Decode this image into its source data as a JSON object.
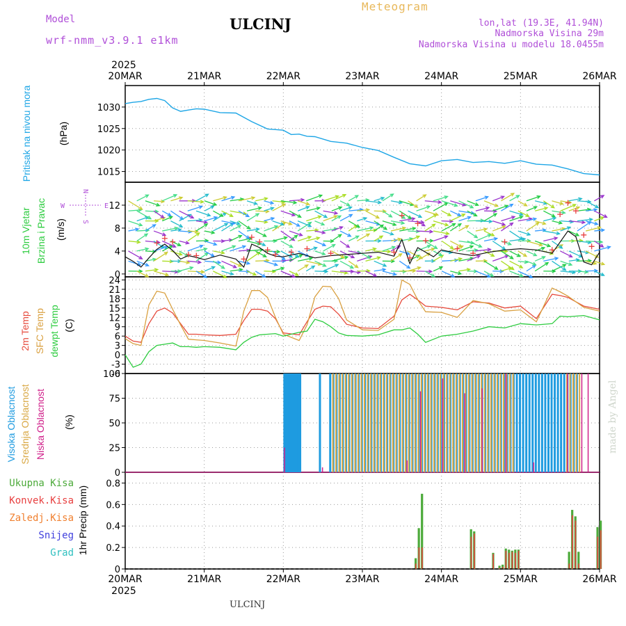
{
  "header": {
    "model_label": "Model",
    "model_name": "wrf-nmm_v3.9.1 e1km",
    "station": "ULCINJ",
    "product": "Meteogram",
    "lonlat": "lon,lat (19.3E, 41.94N)",
    "elevation": "Nadmorska Visina 29m",
    "model_elevation": "Nadmorska Visina u modelu 18.0455m"
  },
  "footer_station": "ULCINJ",
  "credit": "made by Angel",
  "time_axis": {
    "year": "2025",
    "ticks": [
      "20MAR",
      "21MAR",
      "22MAR",
      "23MAR",
      "24MAR",
      "25MAR",
      "26MAR"
    ]
  },
  "compass": {
    "n": "N",
    "e": "E",
    "w": "W",
    "s": "S"
  },
  "colors": {
    "pressure": "#1ea6e6",
    "temp2m": "#e64a3c",
    "tempsfc": "#d9a040",
    "dewpt": "#2ecc40",
    "high": "#1e9be0",
    "mid": "#d9a845",
    "low": "#d0208a",
    "total": "#4caa3a",
    "conv": "#e84040",
    "frozen": "#f08030",
    "snow": "#4040dd",
    "graupel": "#30c0c0"
  },
  "chart_data": [
    {
      "type": "line",
      "name": "pressure",
      "ylabel_left": "Pritisak na nivou mora",
      "unit": "(hPa)",
      "ylim": [
        1012.5,
        1035
      ],
      "yticks": [
        1015,
        1020,
        1025,
        1030
      ],
      "x": [
        0,
        0.1,
        0.2,
        0.3,
        0.4,
        0.5,
        0.6,
        0.7,
        0.8,
        0.9,
        1,
        1.2,
        1.4,
        1.6,
        1.8,
        2,
        2.1,
        2.2,
        2.3,
        2.4,
        2.6,
        2.8,
        3,
        3.2,
        3.4,
        3.6,
        3.8,
        4,
        4.2,
        4.4,
        4.6,
        4.8,
        5,
        5.2,
        5.4,
        5.6,
        5.8,
        6
      ],
      "values": [
        1030.8,
        1031.1,
        1031.3,
        1031.8,
        1032,
        1031.5,
        1029.8,
        1029,
        1029.3,
        1029.6,
        1029.5,
        1028.7,
        1028.6,
        1026.6,
        1024.9,
        1024.6,
        1023.6,
        1023.7,
        1023.2,
        1023.1,
        1022,
        1021.6,
        1020.6,
        1019.9,
        1018.3,
        1016.8,
        1016.3,
        1017.5,
        1017.8,
        1017.1,
        1017.3,
        1016.9,
        1017.5,
        1016.7,
        1016.5,
        1015.6,
        1014.5,
        1014.2
      ]
    },
    {
      "type": "line",
      "name": "wind",
      "ylabel_left": [
        "10m Vjetar",
        "Brzina i Pravac"
      ],
      "unit": "(m/s)",
      "ylim": [
        -0.5,
        16
      ],
      "yticks": [
        0,
        4,
        8,
        12
      ],
      "x": [
        0,
        0.1,
        0.2,
        0.3,
        0.4,
        0.5,
        0.6,
        0.7,
        0.8,
        0.9,
        1,
        1.2,
        1.4,
        1.5,
        1.6,
        1.7,
        1.8,
        1.9,
        2,
        2.2,
        2.4,
        2.6,
        2.8,
        3,
        3.2,
        3.4,
        3.5,
        3.6,
        3.7,
        3.8,
        3.9,
        4,
        4.2,
        4.4,
        4.6,
        4.8,
        5,
        5.2,
        5.4,
        5.6,
        5.7,
        5.8,
        5.9,
        6
      ],
      "values": [
        3,
        2.2,
        1.2,
        2.8,
        4.3,
        5.2,
        4.1,
        2.6,
        3.2,
        2.9,
        2.5,
        3.3,
        2.6,
        1.2,
        5.2,
        4.6,
        3.6,
        3.1,
        3,
        3.6,
        2.8,
        3.2,
        3.4,
        3.6,
        3.8,
        3.1,
        6,
        1.8,
        4.6,
        3.8,
        3,
        4.2,
        3.6,
        3.2,
        3.8,
        4.2,
        4.4,
        4.2,
        3.6,
        7.5,
        6.5,
        2.1,
        1.6,
        3.8
      ],
      "gust_x": [
        0.4,
        0.5,
        0.6,
        0.8,
        0.9,
        1.5,
        1.6,
        1.7,
        1.8,
        1.9,
        2.1,
        2.3,
        2.6,
        3.4,
        3.5,
        3.6,
        3.7,
        3.8,
        4.2,
        4.4,
        4.8,
        5.4,
        5.5,
        5.6,
        5.7,
        5.8,
        5.9
      ],
      "gust_values": [
        5.4,
        6.2,
        5.6,
        3.4,
        3.2,
        2.6,
        6.4,
        5.6,
        4.2,
        3.4,
        3.8,
        4.4,
        3.6,
        3.8,
        10.2,
        2.8,
        8.8,
        5.8,
        4.4,
        3.6,
        5.6,
        4.2,
        10.4,
        12.4,
        11,
        6.8,
        4.8
      ]
    },
    {
      "type": "line",
      "name": "temperature",
      "ylabel_left": [
        "2m Temp",
        "SFC Temp",
        "dewpt Temp"
      ],
      "unit": "(C)",
      "ylim": [
        -6,
        25
      ],
      "yticks": [
        -6,
        -3,
        0,
        3,
        6,
        9,
        12,
        15,
        18,
        21,
        24
      ],
      "x": [
        0,
        0.1,
        0.2,
        0.3,
        0.4,
        0.5,
        0.6,
        0.7,
        0.8,
        0.9,
        1,
        1.2,
        1.4,
        1.5,
        1.6,
        1.7,
        1.8,
        1.9,
        2,
        2.2,
        2.3,
        2.4,
        2.5,
        2.6,
        2.7,
        2.8,
        3,
        3.2,
        3.4,
        3.5,
        3.6,
        3.7,
        3.8,
        4,
        4.2,
        4.4,
        4.6,
        4.8,
        5,
        5.2,
        5.4,
        5.5,
        5.6,
        5.8,
        6
      ],
      "series": [
        {
          "name": "2m Temp",
          "values": [
            6,
            4.4,
            4,
            10,
            14,
            15,
            13.4,
            10,
            6.6,
            6.6,
            6.4,
            6.2,
            6.6,
            11,
            14.6,
            14.6,
            14,
            11.6,
            7,
            6.4,
            10.6,
            14.6,
            15.6,
            15.4,
            13,
            9.8,
            8.6,
            8.4,
            12.4,
            17.6,
            19.4,
            17.6,
            15.6,
            15.2,
            14.4,
            17,
            16.6,
            15,
            15.6,
            11.6,
            19.4,
            19,
            18.4,
            15.6,
            14.6
          ]
        },
        {
          "name": "SFC Temp",
          "values": [
            5.2,
            3.6,
            3,
            16,
            20.4,
            19.8,
            14.6,
            9.6,
            5,
            4.8,
            4.6,
            3.8,
            2.8,
            14,
            20.6,
            20.6,
            18.4,
            12,
            6.6,
            4.6,
            9.6,
            18.6,
            22,
            21.8,
            18,
            11.2,
            8,
            7.8,
            11.4,
            24,
            22.6,
            17.6,
            13.8,
            13.6,
            12,
            17.4,
            16.4,
            14,
            14.4,
            10.6,
            21.4,
            20.2,
            18.8,
            15.2,
            14
          ]
        },
        {
          "name": "dewpt Temp",
          "values": [
            0,
            -4,
            -3,
            1,
            3,
            3.4,
            3.8,
            2.6,
            2.6,
            2.4,
            2.6,
            2.4,
            1.6,
            4,
            5.6,
            6.4,
            6.6,
            6.8,
            6,
            7.2,
            7.6,
            11.4,
            10.6,
            9,
            7,
            6.2,
            6,
            6.4,
            8,
            8,
            8.6,
            6.6,
            4,
            6,
            6.6,
            7.6,
            9,
            8.6,
            10,
            9.6,
            10,
            12.4,
            12.2,
            12.6,
            11.2
          ]
        }
      ]
    },
    {
      "type": "bar",
      "name": "cloud_cover",
      "ylabel_left": [
        "Visoka Oblacnost",
        "Srednja Oblacnost",
        "Niska Oblacnost"
      ],
      "unit": "(%)",
      "ylim": [
        0,
        100
      ],
      "yticks": [
        0,
        25,
        50,
        75,
        100
      ],
      "high_x": [
        2,
        2.02,
        2.04,
        2.06,
        2.08,
        2.1,
        2.12,
        2.14,
        2.16,
        2.18,
        2.2,
        2.45,
        2.58,
        2.62,
        2.66,
        2.7,
        2.74,
        2.78,
        2.82,
        2.86,
        2.9,
        2.94,
        2.98,
        3.02,
        3.06,
        3.1,
        3.14,
        3.18,
        3.22,
        3.26,
        3.3,
        3.34,
        3.38,
        3.42,
        3.46,
        3.5,
        3.54,
        3.58,
        3.62,
        3.66,
        3.7,
        3.74,
        3.78,
        3.82,
        3.86,
        3.9,
        3.94,
        3.98,
        4.02,
        4.06,
        4.1,
        4.14,
        4.18,
        4.22,
        4.26,
        4.3,
        4.34,
        4.38,
        4.42,
        4.46,
        4.5,
        4.54,
        4.58,
        4.62,
        4.66,
        4.7,
        4.74,
        4.78,
        4.82,
        4.86,
        4.9,
        4.94,
        4.98,
        5.02,
        5.06,
        5.1,
        5.14,
        5.18,
        5.22,
        5.26,
        5.3,
        5.34,
        5.38,
        5.42,
        5.46,
        5.5,
        5.54,
        5.58,
        5.62,
        5.66,
        5.7
      ],
      "high_values": [
        100,
        100,
        100,
        100,
        100,
        100,
        100,
        100,
        100,
        100,
        100,
        100,
        100,
        100,
        100,
        100,
        100,
        100,
        100,
        100,
        100,
        100,
        100,
        100,
        100,
        100,
        100,
        100,
        100,
        100,
        100,
        100,
        100,
        100,
        100,
        100,
        100,
        100,
        100,
        100,
        100,
        100,
        100,
        100,
        100,
        100,
        100,
        100,
        100,
        100,
        100,
        100,
        100,
        100,
        100,
        100,
        100,
        100,
        100,
        100,
        100,
        100,
        100,
        100,
        100,
        100,
        100,
        100,
        100,
        100,
        100,
        100,
        100,
        100,
        100,
        100,
        100,
        100,
        100,
        100,
        100,
        100,
        100,
        100,
        100,
        100,
        100,
        100,
        100,
        100,
        100
      ],
      "mid_x": [
        2.6,
        2.64,
        2.68,
        2.72,
        2.76,
        2.8,
        2.84,
        2.88,
        2.92,
        2.96,
        3,
        3.04,
        3.08,
        3.12,
        3.16,
        3.2,
        3.24,
        3.28,
        3.32,
        3.36,
        3.4,
        3.44,
        3.48,
        3.52,
        3.56,
        3.6,
        3.64,
        3.68,
        3.72,
        3.76,
        3.8,
        3.84,
        3.88,
        3.92,
        3.96,
        4,
        4.04,
        4.08,
        4.12,
        4.16,
        4.2,
        4.24,
        4.28,
        4.32,
        4.36,
        4.4,
        4.44,
        4.48,
        4.52,
        4.56,
        4.6,
        4.64,
        4.68,
        4.72,
        4.76,
        4.8,
        4.84,
        4.88,
        5.56,
        5.6,
        5.64,
        5.68,
        5.72
      ],
      "mid_values": [
        100,
        100,
        100,
        100,
        100,
        100,
        100,
        100,
        100,
        100,
        100,
        100,
        100,
        100,
        100,
        100,
        100,
        100,
        100,
        100,
        100,
        100,
        100,
        100,
        100,
        100,
        100,
        100,
        100,
        100,
        100,
        100,
        100,
        100,
        100,
        100,
        100,
        100,
        100,
        100,
        100,
        100,
        100,
        100,
        100,
        100,
        100,
        100,
        100,
        100,
        100,
        100,
        100,
        100,
        100,
        100,
        100,
        100,
        100,
        100,
        100,
        100,
        100
      ],
      "low_x": [
        2,
        2.48,
        3.55,
        3.72,
        4,
        4.28,
        4.5,
        4.8,
        5.15,
        5.58,
        5.76,
        5.84
      ],
      "low_values": [
        25,
        5,
        12,
        82,
        95,
        80,
        85,
        100,
        10,
        100,
        100,
        100
      ]
    },
    {
      "type": "bar",
      "name": "precipitation",
      "ylabel_left": [
        "Ukupna Kisa",
        "Konvek.Kisa",
        "Zaledj.Kisa",
        "Snijeg",
        "Grad"
      ],
      "ylabel": "1hr Precip (mm)",
      "ylim": [
        0,
        0.9
      ],
      "yticks": [
        0,
        0.2,
        0.4,
        0.6,
        0.8
      ],
      "x": [
        3.66,
        3.7,
        3.74,
        4.36,
        4.4,
        4.64,
        4.72,
        4.76,
        4.8,
        4.84,
        4.88,
        4.92,
        4.96,
        5.6,
        5.64,
        5.68,
        5.72,
        5.96,
        6
      ],
      "total": [
        0.1,
        0.38,
        0.7,
        0.37,
        0.35,
        0.15,
        0.03,
        0.04,
        0.19,
        0.18,
        0.17,
        0.18,
        0.18,
        0.16,
        0.55,
        0.49,
        0.16,
        0.39,
        0.45
      ],
      "conv": [
        0.05,
        0.2,
        0.2,
        0.3,
        0.33,
        0.14,
        0.01,
        0.02,
        0.17,
        0.15,
        0.16,
        0.15,
        0.17,
        0.05,
        0.5,
        0.45,
        0.05,
        0.3,
        0.36
      ]
    }
  ]
}
